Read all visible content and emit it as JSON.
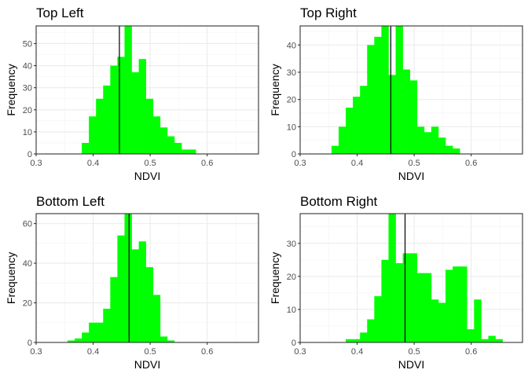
{
  "chart_data": [
    {
      "type": "bar",
      "title": "Top Left",
      "xlabel": "NDVI",
      "ylabel": "Frequency",
      "xlim": [
        0.3,
        0.69
      ],
      "ylim": [
        0,
        58
      ],
      "x_ticks": [
        "0.3",
        "0.4",
        "0.5",
        "0.6"
      ],
      "y_ticks": [
        "0",
        "10",
        "20",
        "30",
        "40",
        "50"
      ],
      "bin_width": 0.0125,
      "bin_starts": [
        0.38,
        0.3925,
        0.405,
        0.4175,
        0.43,
        0.4425,
        0.455,
        0.4675,
        0.48,
        0.4925,
        0.505,
        0.5175,
        0.53,
        0.5425,
        0.555,
        0.5675
      ],
      "values": [
        5,
        17,
        25,
        31,
        40,
        44,
        58,
        37,
        43,
        25,
        17,
        12,
        8,
        5,
        2,
        2
      ],
      "mean": 0.446,
      "bar_color": "#00ff00"
    },
    {
      "type": "bar",
      "title": "Top Right",
      "xlabel": "NDVI",
      "ylabel": "Frequency",
      "xlim": [
        0.3,
        0.69
      ],
      "ylim": [
        0,
        47
      ],
      "x_ticks": [
        "0.3",
        "0.4",
        "0.5",
        "0.6"
      ],
      "y_ticks": [
        "0",
        "10",
        "20",
        "30",
        "40"
      ],
      "bin_width": 0.0125,
      "bin_starts": [
        0.355,
        0.3675,
        0.38,
        0.3925,
        0.405,
        0.4175,
        0.43,
        0.4425,
        0.455,
        0.4675,
        0.48,
        0.4925,
        0.505,
        0.5175,
        0.53,
        0.5425,
        0.555,
        0.5675
      ],
      "values": [
        3,
        10,
        17,
        21,
        25,
        40,
        43,
        47,
        29,
        47,
        31,
        27,
        10,
        8,
        10,
        6,
        3,
        2
      ],
      "mean": 0.459,
      "bar_color": "#00ff00"
    },
    {
      "type": "bar",
      "title": "Bottom Left",
      "xlabel": "NDVI",
      "ylabel": "Frequency",
      "xlim": [
        0.3,
        0.69
      ],
      "ylim": [
        0,
        65
      ],
      "x_ticks": [
        "0.3",
        "0.4",
        "0.5",
        "0.6"
      ],
      "y_ticks": [
        "0",
        "20",
        "40",
        "60"
      ],
      "bin_width": 0.0125,
      "bin_starts": [
        0.355,
        0.3675,
        0.38,
        0.3925,
        0.405,
        0.4175,
        0.43,
        0.4425,
        0.455,
        0.4675,
        0.48,
        0.4925,
        0.505,
        0.5175,
        0.53,
        0.5425
      ],
      "values": [
        1,
        2,
        5,
        10,
        10,
        17,
        33,
        54,
        65,
        47,
        51,
        38,
        24,
        3,
        1,
        0
      ],
      "mean": 0.463,
      "bar_color": "#00ff00"
    },
    {
      "type": "bar",
      "title": "Bottom Right",
      "xlabel": "NDVI",
      "ylabel": "Frequency",
      "xlim": [
        0.3,
        0.69
      ],
      "ylim": [
        0,
        39
      ],
      "x_ticks": [
        "0.3",
        "0.4",
        "0.5",
        "0.6"
      ],
      "y_ticks": [
        "0",
        "10",
        "20",
        "30"
      ],
      "bin_width": 0.0125,
      "bin_starts": [
        0.38,
        0.3925,
        0.405,
        0.4175,
        0.43,
        0.4425,
        0.455,
        0.4675,
        0.48,
        0.4925,
        0.505,
        0.5175,
        0.53,
        0.5425,
        0.555,
        0.5675,
        0.58,
        0.5925,
        0.605,
        0.6175,
        0.63,
        0.6425
      ],
      "values": [
        1,
        1,
        3,
        7,
        14,
        25,
        39,
        24,
        27,
        27,
        21,
        21,
        13,
        12,
        22,
        23,
        23,
        4,
        13,
        1,
        2,
        1
      ],
      "mean": 0.484,
      "bar_color": "#00ff00"
    }
  ]
}
